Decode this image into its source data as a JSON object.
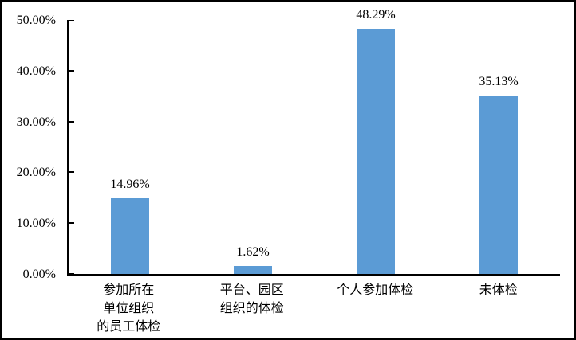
{
  "chart_data": {
    "type": "bar",
    "title": "",
    "categories": [
      "参加所在\n单位组织\n的员工体检",
      "平台、园区\n组织的体检",
      "个人参加体检",
      "未体检"
    ],
    "values": [
      14.96,
      1.62,
      48.29,
      35.13
    ],
    "data_labels": [
      "14.96%",
      "1.62%",
      "48.29%",
      "35.13%"
    ],
    "ylim": [
      0,
      50
    ],
    "yticks": [
      0,
      10,
      20,
      30,
      40,
      50
    ],
    "ytick_labels": [
      "0.00%",
      "10.00%",
      "20.00%",
      "30.00%",
      "40.00%",
      "50.00%"
    ],
    "xlabel": "",
    "ylabel": "",
    "grid": false,
    "legend_position": "none",
    "colors": {
      "bar_fill": "#5B9BD5",
      "axis_line": "#000000",
      "text": "#000000",
      "background": "#FFFFFF",
      "frame_border": "#000000"
    }
  }
}
